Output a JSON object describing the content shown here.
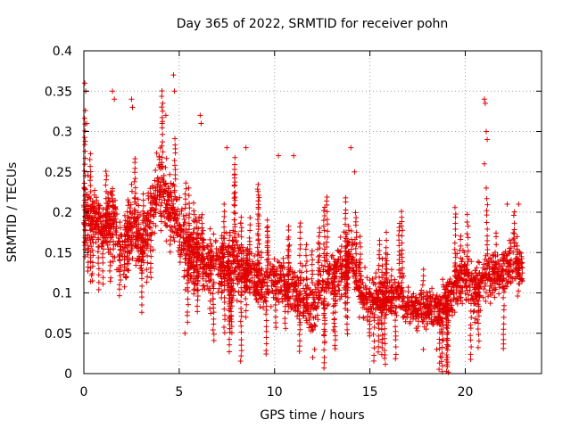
{
  "chart_data": {
    "type": "scatter",
    "title": "Day 365 of 2022, SRMTID for receiver pohn",
    "xlabel": "GPS time / hours",
    "ylabel": "SRMTID / TECUs",
    "xlim": [
      0,
      24
    ],
    "ylim": [
      0,
      0.4
    ],
    "x_ticks": [
      0,
      5,
      10,
      15,
      20
    ],
    "x_tick_labels": [
      "0",
      "5",
      "10",
      "15",
      "20"
    ],
    "y_ticks": [
      0,
      0.05,
      0.1,
      0.15,
      0.2,
      0.25,
      0.3,
      0.35,
      0.4
    ],
    "y_tick_labels": [
      "0",
      "0.05",
      "0.1",
      "0.15",
      "0.2",
      "0.25",
      "0.3",
      "0.35",
      "0.4"
    ],
    "grid": true,
    "marker": "plus",
    "color": "#e00000",
    "series": [
      {
        "name": "SRMTID",
        "envelope_hours": [
          0.0,
          0.5,
          1.0,
          1.5,
          2.0,
          2.5,
          3.0,
          3.5,
          4.0,
          4.5,
          5.0,
          5.5,
          6.0,
          6.5,
          7.0,
          7.5,
          8.0,
          8.5,
          9.0,
          9.5,
          10.0,
          10.5,
          11.0,
          11.5,
          12.0,
          12.5,
          13.0,
          13.5,
          14.0,
          14.5,
          15.0,
          15.5,
          16.0,
          16.5,
          17.0,
          17.5,
          18.0,
          18.5,
          19.0,
          19.5,
          20.0,
          20.5,
          21.0,
          21.5,
          22.0,
          22.5,
          23.0
        ],
        "typical_value": [
          0.21,
          0.19,
          0.18,
          0.2,
          0.14,
          0.19,
          0.15,
          0.2,
          0.23,
          0.21,
          0.18,
          0.14,
          0.15,
          0.13,
          0.14,
          0.13,
          0.14,
          0.13,
          0.12,
          0.11,
          0.12,
          0.11,
          0.1,
          0.09,
          0.08,
          0.11,
          0.12,
          0.13,
          0.15,
          0.1,
          0.09,
          0.09,
          0.09,
          0.1,
          0.08,
          0.08,
          0.08,
          0.08,
          0.09,
          0.11,
          0.12,
          0.11,
          0.12,
          0.12,
          0.13,
          0.14,
          0.13
        ],
        "spread": [
          0.06,
          0.04,
          0.04,
          0.05,
          0.05,
          0.06,
          0.05,
          0.05,
          0.06,
          0.05,
          0.05,
          0.05,
          0.05,
          0.04,
          0.05,
          0.05,
          0.05,
          0.04,
          0.04,
          0.04,
          0.04,
          0.04,
          0.04,
          0.04,
          0.04,
          0.04,
          0.04,
          0.05,
          0.05,
          0.04,
          0.03,
          0.03,
          0.03,
          0.03,
          0.03,
          0.03,
          0.03,
          0.03,
          0.03,
          0.04,
          0.04,
          0.04,
          0.04,
          0.04,
          0.04,
          0.04,
          0.04
        ],
        "outliers": [
          [
            0.05,
            0.36
          ],
          [
            0.1,
            0.35
          ],
          [
            0.15,
            0.31
          ],
          [
            1.5,
            0.35
          ],
          [
            1.6,
            0.34
          ],
          [
            2.5,
            0.34
          ],
          [
            2.55,
            0.33
          ],
          [
            4.1,
            0.31
          ],
          [
            4.3,
            0.32
          ],
          [
            4.7,
            0.37
          ],
          [
            4.75,
            0.35
          ],
          [
            6.1,
            0.32
          ],
          [
            6.15,
            0.31
          ],
          [
            7.5,
            0.28
          ],
          [
            8.5,
            0.28
          ],
          [
            10.2,
            0.27
          ],
          [
            14.0,
            0.28
          ],
          [
            14.2,
            0.25
          ],
          [
            11.0,
            0.27
          ],
          [
            21.0,
            0.34
          ],
          [
            21.05,
            0.335
          ],
          [
            21.1,
            0.3
          ],
          [
            21.15,
            0.29
          ],
          [
            21.0,
            0.26
          ],
          [
            21.1,
            0.23
          ],
          [
            12.0,
            0.02
          ],
          [
            12.1,
            0.03
          ],
          [
            17.8,
            0.03
          ],
          [
            18.5,
            0.03
          ],
          [
            5.3,
            0.05
          ],
          [
            22.2,
            0.21
          ],
          [
            22.8,
            0.21
          ]
        ]
      }
    ]
  }
}
